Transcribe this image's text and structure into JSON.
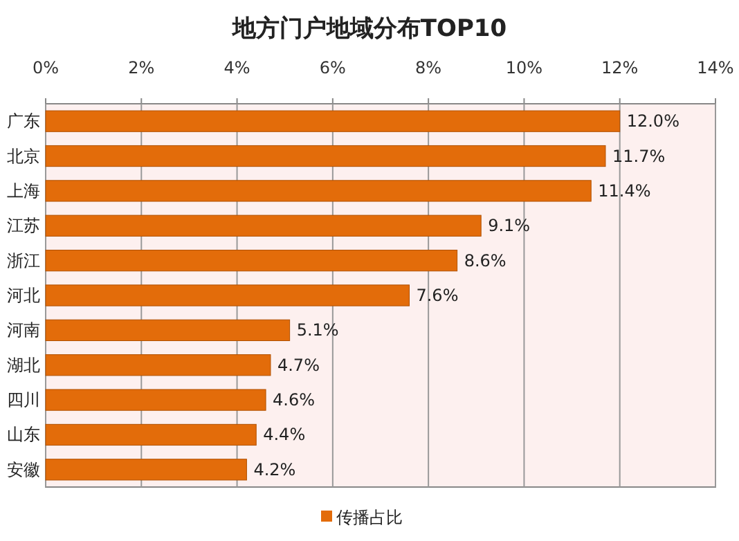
{
  "chart_data": {
    "type": "bar",
    "orientation": "horizontal",
    "title": "地方门户地域分布TOP10",
    "categories": [
      "广东",
      "北京",
      "上海",
      "江苏",
      "浙江",
      "河北",
      "河南",
      "湖北",
      "四川",
      "山东",
      "安徽"
    ],
    "series": [
      {
        "name": "传播占比",
        "color": "#e36c0a",
        "values": [
          12.0,
          11.7,
          11.4,
          9.1,
          8.6,
          7.6,
          5.1,
          4.7,
          4.6,
          4.4,
          4.2
        ],
        "value_labels": [
          "12.0%",
          "11.7%",
          "11.4%",
          "9.1%",
          "8.6%",
          "7.6%",
          "5.1%",
          "4.7%",
          "4.6%",
          "4.4%",
          "4.2%"
        ]
      }
    ],
    "xlim": [
      0,
      14
    ],
    "xticks": [
      {
        "value": 0,
        "label": "0%"
      },
      {
        "value": 2,
        "label": "2%"
      },
      {
        "value": 4,
        "label": "4%"
      },
      {
        "value": 6,
        "label": "6%"
      },
      {
        "value": 8,
        "label": "8%"
      },
      {
        "value": 10,
        "label": "10%"
      },
      {
        "value": 12,
        "label": "12%"
      },
      {
        "value": 14,
        "label": "14%"
      }
    ],
    "grid": "x",
    "legend": "bottom"
  }
}
